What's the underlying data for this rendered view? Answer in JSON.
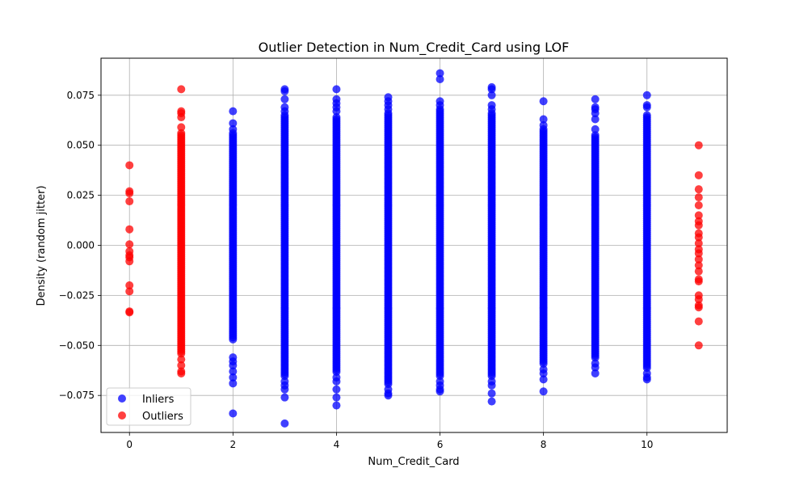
{
  "chart_data": {
    "type": "scatter",
    "title": "Outlier Detection in Num_Credit_Card using LOF",
    "xlabel": "Num_Credit_Card",
    "ylabel": "Density (random jitter)",
    "xlim": [
      -0.55,
      11.55
    ],
    "ylim": [
      -0.0935,
      0.0935
    ],
    "xticks": [
      0,
      2,
      4,
      6,
      8,
      10
    ],
    "xtick_labels": [
      "0",
      "2",
      "4",
      "6",
      "8",
      "10"
    ],
    "yticks": [
      -0.075,
      -0.05,
      -0.025,
      0.0,
      0.025,
      0.05,
      0.075
    ],
    "ytick_labels": [
      "−0.075",
      "−0.050",
      "−0.025",
      "0.000",
      "0.025",
      "0.050",
      "0.075"
    ],
    "grid": true,
    "legend_position": "lower-left",
    "series": [
      {
        "name": "Inliers",
        "color": "#0000ff",
        "columns": [
          {
            "x": 2,
            "dense_range": [
              -0.048,
              0.056
            ],
            "extra_y": [
              0.067,
              0.061,
              0.058,
              -0.056,
              -0.058,
              -0.06,
              -0.063,
              -0.066,
              -0.069,
              -0.084
            ]
          },
          {
            "x": 3,
            "dense_range": [
              -0.066,
              0.065
            ],
            "extra_y": [
              0.078,
              0.077,
              0.073,
              0.069,
              0.067,
              -0.068,
              -0.07,
              -0.072,
              -0.076,
              -0.089
            ]
          },
          {
            "x": 4,
            "dense_range": [
              -0.064,
              0.064
            ],
            "extra_y": [
              0.078,
              0.073,
              0.071,
              0.069,
              0.067,
              -0.066,
              -0.068,
              -0.072,
              -0.076,
              -0.08
            ]
          },
          {
            "x": 5,
            "dense_range": [
              -0.07,
              0.066
            ],
            "extra_y": [
              0.074,
              0.072,
              0.07,
              0.068,
              -0.072,
              -0.074,
              -0.075
            ]
          },
          {
            "x": 6,
            "dense_range": [
              -0.066,
              0.068
            ],
            "extra_y": [
              0.086,
              0.083,
              0.072,
              0.07,
              -0.068,
              -0.07,
              -0.072,
              -0.073
            ]
          },
          {
            "x": 7,
            "dense_range": [
              -0.066,
              0.066
            ],
            "extra_y": [
              0.079,
              0.078,
              0.075,
              0.07,
              0.068,
              -0.068,
              -0.07,
              -0.074,
              -0.078
            ]
          },
          {
            "x": 8,
            "dense_range": [
              -0.06,
              0.058
            ],
            "extra_y": [
              0.072,
              0.063,
              0.06,
              -0.062,
              -0.064,
              -0.067,
              -0.073
            ]
          },
          {
            "x": 9,
            "dense_range": [
              -0.057,
              0.055
            ],
            "extra_y": [
              0.073,
              0.069,
              0.068,
              0.066,
              0.063,
              0.058,
              -0.059,
              -0.061,
              -0.064
            ]
          },
          {
            "x": 10,
            "dense_range": [
              -0.062,
              0.065
            ],
            "extra_y": [
              0.075,
              0.07,
              0.069,
              -0.064,
              -0.066,
              -0.067
            ]
          }
        ]
      },
      {
        "name": "Outliers",
        "color": "#ff0000",
        "columns": [
          {
            "x": 0,
            "dense_range": null,
            "extra_y": [
              0.04,
              0.027,
              0.026,
              0.022,
              0.008,
              0.0005,
              -0.003,
              -0.005,
              -0.006,
              -0.008,
              -0.02,
              -0.023,
              -0.033,
              -0.0335
            ]
          },
          {
            "x": 1,
            "dense_range": [
              -0.055,
              0.055
            ],
            "extra_y": [
              0.078,
              0.067,
              0.066,
              0.064,
              0.059,
              0.056,
              -0.057,
              -0.06,
              -0.063,
              -0.064
            ]
          },
          {
            "x": 11,
            "dense_range": null,
            "extra_y": [
              0.05,
              0.035,
              0.028,
              0.024,
              0.02,
              0.015,
              0.012,
              0.01,
              0.006,
              0.004,
              0.001,
              -0.002,
              -0.004,
              -0.007,
              -0.01,
              -0.013,
              -0.017,
              -0.018,
              -0.025,
              -0.027,
              -0.03,
              -0.031,
              -0.038,
              -0.05
            ]
          }
        ]
      }
    ]
  }
}
